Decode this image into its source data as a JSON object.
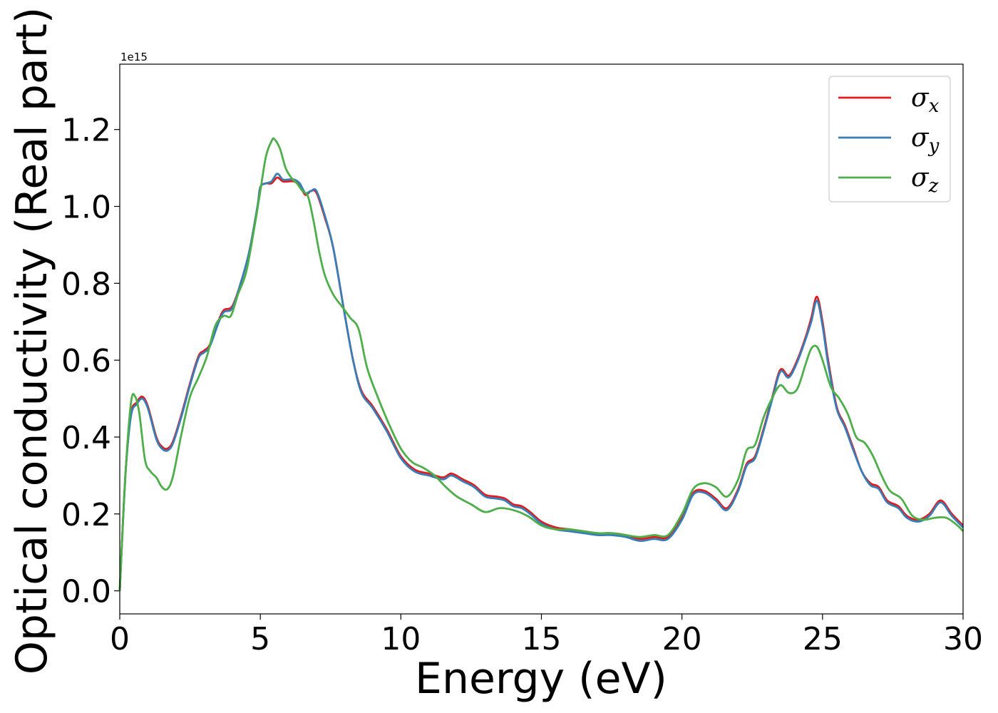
{
  "chart_data": {
    "type": "line",
    "xlabel": "Energy (eV)",
    "ylabel": "Optical conductivity (Real part)",
    "y_offset_label": "1e15",
    "xlim": [
      0,
      30
    ],
    "ylim": [
      -0.06,
      1.37
    ],
    "xticks": [
      0,
      5,
      10,
      15,
      20,
      25,
      30
    ],
    "xtick_labels": [
      "0",
      "5",
      "10",
      "15",
      "20",
      "25",
      "30"
    ],
    "yticks": [
      0.0,
      0.2,
      0.4,
      0.6,
      0.8,
      1.0,
      1.2
    ],
    "ytick_labels": [
      "0.0",
      "0.2",
      "0.4",
      "0.6",
      "0.8",
      "1.0",
      "1.2"
    ],
    "grid": false,
    "legend_position": "top-right",
    "series": [
      {
        "name": "σx",
        "symbol": "σ",
        "subscript": "x",
        "color": "#e41a1c",
        "x": [
          0,
          0.2,
          0.4,
          0.6,
          0.8,
          1.0,
          1.3,
          1.5,
          1.7,
          1.9,
          2.2,
          2.5,
          2.8,
          3.0,
          3.2,
          3.5,
          3.7,
          4.0,
          4.3,
          4.6,
          4.9,
          5.0,
          5.2,
          5.4,
          5.6,
          5.8,
          6.0,
          6.2,
          6.4,
          6.6,
          6.8,
          7.0,
          7.3,
          7.6,
          8.0,
          8.3,
          8.6,
          9.0,
          9.5,
          10.0,
          10.5,
          11.0,
          11.5,
          11.8,
          12.2,
          12.6,
          13.0,
          13.4,
          13.7,
          14.0,
          14.3,
          14.6,
          15.0,
          15.5,
          16.0,
          16.5,
          17.0,
          17.5,
          18.0,
          18.5,
          19.0,
          19.5,
          20.0,
          20.4,
          20.8,
          21.2,
          21.6,
          22.0,
          22.3,
          22.6,
          22.9,
          23.2,
          23.5,
          23.8,
          24.1,
          24.4,
          24.6,
          24.8,
          25.0,
          25.2,
          25.5,
          25.8,
          26.1,
          26.4,
          26.7,
          27.0,
          27.3,
          27.7,
          28.0,
          28.4,
          28.8,
          29.2,
          29.6,
          30.0
        ],
        "values": [
          0.0,
          0.3,
          0.46,
          0.49,
          0.505,
          0.48,
          0.4,
          0.375,
          0.37,
          0.39,
          0.46,
          0.54,
          0.61,
          0.625,
          0.64,
          0.7,
          0.73,
          0.74,
          0.8,
          0.88,
          1.0,
          1.05,
          1.06,
          1.06,
          1.075,
          1.065,
          1.065,
          1.065,
          1.055,
          1.03,
          1.04,
          1.035,
          0.97,
          0.89,
          0.72,
          0.6,
          0.52,
          0.48,
          0.42,
          0.35,
          0.315,
          0.305,
          0.295,
          0.305,
          0.29,
          0.275,
          0.25,
          0.245,
          0.24,
          0.225,
          0.22,
          0.205,
          0.18,
          0.165,
          0.16,
          0.155,
          0.15,
          0.15,
          0.145,
          0.135,
          0.14,
          0.14,
          0.19,
          0.255,
          0.26,
          0.24,
          0.215,
          0.265,
          0.33,
          0.35,
          0.42,
          0.5,
          0.575,
          0.56,
          0.6,
          0.66,
          0.71,
          0.765,
          0.7,
          0.6,
          0.48,
          0.43,
          0.37,
          0.31,
          0.28,
          0.27,
          0.235,
          0.22,
          0.195,
          0.185,
          0.2,
          0.235,
          0.2,
          0.17
        ]
      },
      {
        "name": "σy",
        "symbol": "σ",
        "subscript": "y",
        "color": "#377eb8",
        "x": [
          0,
          0.2,
          0.4,
          0.6,
          0.8,
          1.0,
          1.3,
          1.5,
          1.7,
          1.9,
          2.2,
          2.5,
          2.8,
          3.0,
          3.2,
          3.5,
          3.7,
          4.0,
          4.3,
          4.6,
          4.9,
          5.0,
          5.2,
          5.4,
          5.6,
          5.8,
          6.0,
          6.2,
          6.4,
          6.6,
          6.8,
          7.0,
          7.3,
          7.6,
          8.0,
          8.3,
          8.6,
          9.0,
          9.5,
          10.0,
          10.5,
          11.0,
          11.5,
          11.8,
          12.2,
          12.6,
          13.0,
          13.4,
          13.7,
          14.0,
          14.3,
          14.6,
          15.0,
          15.5,
          16.0,
          16.5,
          17.0,
          17.5,
          18.0,
          18.5,
          19.0,
          19.5,
          20.0,
          20.4,
          20.8,
          21.2,
          21.6,
          22.0,
          22.3,
          22.6,
          22.9,
          23.2,
          23.5,
          23.8,
          24.1,
          24.4,
          24.6,
          24.8,
          25.0,
          25.2,
          25.5,
          25.8,
          26.1,
          26.4,
          26.7,
          27.0,
          27.3,
          27.7,
          28.0,
          28.4,
          28.8,
          29.2,
          29.6,
          30.0
        ],
        "values": [
          0.0,
          0.3,
          0.455,
          0.485,
          0.5,
          0.475,
          0.395,
          0.37,
          0.365,
          0.385,
          0.455,
          0.535,
          0.605,
          0.62,
          0.635,
          0.695,
          0.725,
          0.735,
          0.8,
          0.88,
          1.0,
          1.05,
          1.06,
          1.065,
          1.085,
          1.07,
          1.07,
          1.07,
          1.06,
          1.035,
          1.04,
          1.04,
          0.975,
          0.89,
          0.72,
          0.6,
          0.515,
          0.475,
          0.415,
          0.345,
          0.31,
          0.3,
          0.29,
          0.3,
          0.285,
          0.27,
          0.245,
          0.24,
          0.235,
          0.22,
          0.215,
          0.2,
          0.175,
          0.16,
          0.155,
          0.15,
          0.145,
          0.145,
          0.14,
          0.13,
          0.135,
          0.135,
          0.185,
          0.25,
          0.255,
          0.235,
          0.21,
          0.26,
          0.325,
          0.345,
          0.415,
          0.495,
          0.57,
          0.555,
          0.595,
          0.655,
          0.7,
          0.755,
          0.69,
          0.59,
          0.475,
          0.425,
          0.365,
          0.31,
          0.275,
          0.265,
          0.23,
          0.215,
          0.19,
          0.18,
          0.195,
          0.23,
          0.195,
          0.165
        ]
      },
      {
        "name": "σz",
        "symbol": "σ",
        "subscript": "z",
        "color": "#4daf4a",
        "x": [
          0,
          0.2,
          0.4,
          0.55,
          0.7,
          0.9,
          1.1,
          1.3,
          1.5,
          1.7,
          1.9,
          2.2,
          2.5,
          2.8,
          3.1,
          3.4,
          3.7,
          3.95,
          4.2,
          4.5,
          4.8,
          5.0,
          5.2,
          5.4,
          5.5,
          5.7,
          5.9,
          6.1,
          6.3,
          6.5,
          6.7,
          6.9,
          7.1,
          7.3,
          7.6,
          7.9,
          8.2,
          8.5,
          8.8,
          9.2,
          9.6,
          10.0,
          10.4,
          10.8,
          11.2,
          11.6,
          12.0,
          12.5,
          13.0,
          13.5,
          14.0,
          14.5,
          15.0,
          15.5,
          16.0,
          16.5,
          17.0,
          17.5,
          18.0,
          18.5,
          19.0,
          19.5,
          20.0,
          20.4,
          20.8,
          21.2,
          21.6,
          22.0,
          22.3,
          22.6,
          22.9,
          23.2,
          23.5,
          23.8,
          24.1,
          24.4,
          24.6,
          24.8,
          25.0,
          25.3,
          25.6,
          25.9,
          26.2,
          26.5,
          26.8,
          27.1,
          27.4,
          27.8,
          28.2,
          28.6,
          29.0,
          29.4,
          29.8,
          30.0
        ],
        "values": [
          0.0,
          0.3,
          0.49,
          0.505,
          0.46,
          0.34,
          0.31,
          0.295,
          0.27,
          0.265,
          0.3,
          0.41,
          0.505,
          0.555,
          0.61,
          0.69,
          0.715,
          0.715,
          0.77,
          0.83,
          0.95,
          1.04,
          1.13,
          1.17,
          1.175,
          1.15,
          1.1,
          1.075,
          1.06,
          1.04,
          1.025,
          0.96,
          0.88,
          0.82,
          0.77,
          0.74,
          0.71,
          0.68,
          0.58,
          0.5,
          0.43,
          0.37,
          0.335,
          0.32,
          0.3,
          0.27,
          0.245,
          0.225,
          0.205,
          0.215,
          0.21,
          0.195,
          0.17,
          0.16,
          0.16,
          0.155,
          0.15,
          0.15,
          0.145,
          0.14,
          0.145,
          0.145,
          0.2,
          0.265,
          0.28,
          0.27,
          0.245,
          0.29,
          0.365,
          0.38,
          0.45,
          0.5,
          0.535,
          0.515,
          0.525,
          0.59,
          0.63,
          0.635,
          0.6,
          0.53,
          0.5,
          0.46,
          0.4,
          0.385,
          0.35,
          0.3,
          0.26,
          0.24,
          0.195,
          0.185,
          0.19,
          0.19,
          0.17,
          0.155
        ]
      }
    ]
  }
}
